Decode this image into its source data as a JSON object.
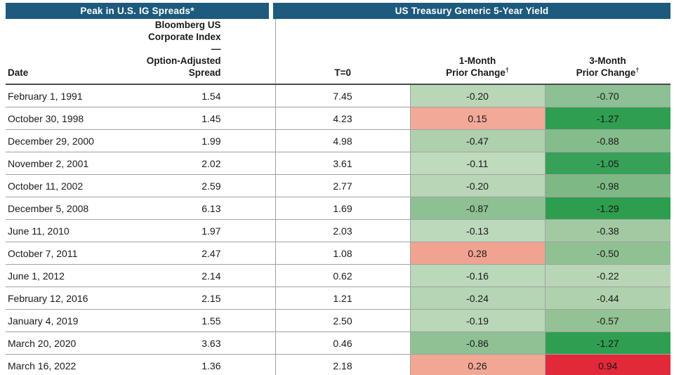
{
  "banner": {
    "left_title": "Peak in U.S. IG Spreads*",
    "right_title": "US Treasury Generic 5-Year Yield",
    "bg_color": "#1d5a7d"
  },
  "header": {
    "date": "Date",
    "oas_lines": [
      "Bloomberg US",
      "Corporate Index—",
      "Option-Adjusted",
      "Spread"
    ],
    "t0": "T=0",
    "m1_line1": "1-Month",
    "m1_line2": "Prior Change",
    "m3_line1": "3-Month",
    "m3_line2": "Prior Change",
    "dagger": "†"
  },
  "colors": {
    "header_bg": "#1d5a7d",
    "negative_light_green": "#b9d6b7",
    "negative_medium_green": "#8dc095",
    "negative_dark_green": "#2f9e50",
    "positive_salmon": "#f2a998",
    "positive_red": "#e2293a",
    "grid_line": "#a1a1a1"
  },
  "chart_data": {
    "type": "table",
    "title": "Peak in U.S. IG Spreads* / US Treasury Generic 5-Year Yield",
    "columns": [
      "Date",
      "Bloomberg US Corporate Index—Option-Adjusted Spread",
      "T=0",
      "1-Month Prior Change†",
      "3-Month Prior Change†"
    ],
    "rows": [
      {
        "date": "February 1, 1991",
        "oas": "1.54",
        "t0": "7.45",
        "m1": "-0.20",
        "m1_bg": "#b9d6b7",
        "m3": "-0.70",
        "m3_bg": "#8dc095"
      },
      {
        "date": "October 30, 1998",
        "oas": "1.45",
        "t0": "4.23",
        "m1": "0.15",
        "m1_bg": "#f2a998",
        "m3": "-1.27",
        "m3_bg": "#2f9e50"
      },
      {
        "date": "December 29, 2000",
        "oas": "1.99",
        "t0": "4.98",
        "m1": "-0.47",
        "m1_bg": "#aed0ad",
        "m3": "-0.88",
        "m3_bg": "#85bc8c"
      },
      {
        "date": "November 2, 2001",
        "oas": "2.02",
        "t0": "3.61",
        "m1": "-0.11",
        "m1_bg": "#bfdabd",
        "m3": "-1.05",
        "m3_bg": "#37a158"
      },
      {
        "date": "October 11, 2002",
        "oas": "2.59",
        "t0": "2.77",
        "m1": "-0.20",
        "m1_bg": "#b9d6b7",
        "m3": "-0.98",
        "m3_bg": "#7eb985"
      },
      {
        "date": "December 5, 2008",
        "oas": "6.13",
        "t0": "1.69",
        "m1": "-0.87",
        "m1_bg": "#8dc093",
        "m3": "-1.29",
        "m3_bg": "#2d9d4e"
      },
      {
        "date": "June 11, 2010",
        "oas": "1.97",
        "t0": "2.03",
        "m1": "-0.13",
        "m1_bg": "#bdd9bb",
        "m3": "-0.38",
        "m3_bg": "#a2c9a2"
      },
      {
        "date": "October 7, 2011",
        "oas": "2.47",
        "t0": "1.08",
        "m1": "0.28",
        "m1_bg": "#f1a392",
        "m3": "-0.50",
        "m3_bg": "#90c193"
      },
      {
        "date": "June 1, 2012",
        "oas": "2.14",
        "t0": "0.62",
        "m1": "-0.16",
        "m1_bg": "#bcd8ba",
        "m3": "-0.22",
        "m3_bg": "#b8d6b6"
      },
      {
        "date": "February 12, 2016",
        "oas": "2.15",
        "t0": "1.21",
        "m1": "-0.24",
        "m1_bg": "#b6d5b4",
        "m3": "-0.44",
        "m3_bg": "#b0d1ae"
      },
      {
        "date": "January 4, 2019",
        "oas": "1.55",
        "t0": "2.50",
        "m1": "-0.19",
        "m1_bg": "#bad7b8",
        "m3": "-0.57",
        "m3_bg": "#93c295"
      },
      {
        "date": "March 20, 2020",
        "oas": "3.63",
        "t0": "0.46",
        "m1": "-0.86",
        "m1_bg": "#8fc194",
        "m3": "-1.27",
        "m3_bg": "#2f9e50"
      },
      {
        "date": "March 16, 2022",
        "oas": "1.36",
        "t0": "2.18",
        "m1": "0.26",
        "m1_bg": "#f2a795",
        "m3": "0.94",
        "m3_bg": "#e2293a"
      }
    ]
  }
}
